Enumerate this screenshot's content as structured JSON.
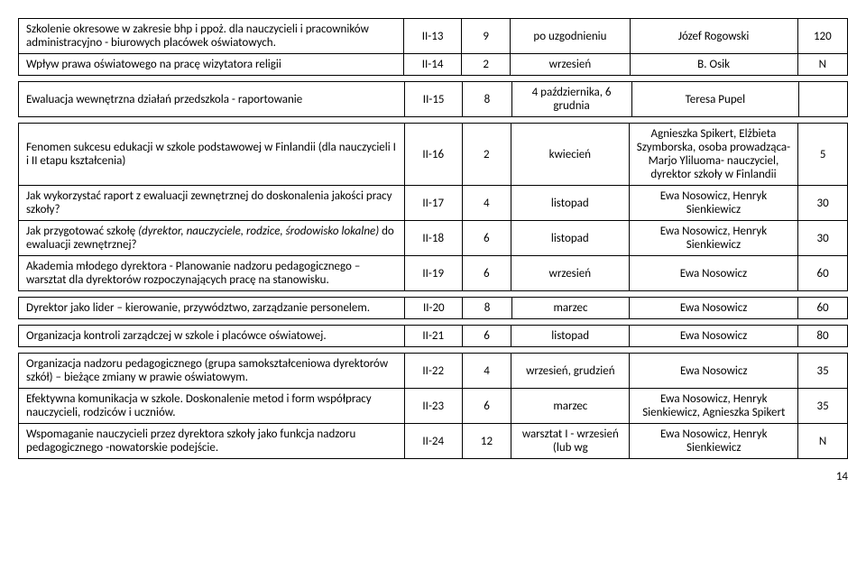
{
  "rows": [
    {
      "desc": "Szkolenie okresowe w zakresie bhp i ppoż. dla nauczycieli i pracowników administracyjno - biurowych placówek oświatowych.",
      "code": "II-13",
      "hrs": "9",
      "month": "po uzgodnieniu",
      "person": "Józef Rogowski",
      "num": "120"
    },
    {
      "desc": "Wpływ prawa oświatowego na pracę wizytatora religii",
      "code": "II-14",
      "hrs": "2",
      "month": "wrzesień",
      "person": "B. Osik",
      "num": "N"
    },
    {
      "desc": "Ewaluacja wewnętrzna działań przedszkola - raportowanie",
      "code": "II-15",
      "hrs": "8",
      "month": "4 października, 6 grudnia",
      "person": "Teresa Pupel",
      "num": ""
    },
    {
      "desc": "Fenomen sukcesu edukacji w szkole podstawowej w Finlandii (dla nauczycieli I i II etapu kształcenia)",
      "code": "II-16",
      "hrs": "2",
      "month": "kwiecień",
      "person": "Agnieszka Spikert, Elżbieta Szymborska, osoba prowadząca- Marjo Yliluoma- nauczyciel, dyrektor szkoły w Finlandii",
      "num": "5"
    },
    {
      "desc": "Jak wykorzystać raport z ewaluacji zewnętrznej do doskonalenia jakości pracy szkoły?",
      "code": "II-17",
      "hrs": "4",
      "month": "listopad",
      "person": "Ewa Nosowicz, Henryk Sienkiewicz",
      "num": "30"
    },
    {
      "desc_html": "Jak przygotować szkołę <span class=\"italic\">(dyrektor, nauczyciele, rodzice, środowisko lokalne)</span> do ewaluacji zewnętrznej?",
      "code": "II-18",
      "hrs": "6",
      "month": "listopad",
      "person": "Ewa Nosowicz, Henryk Sienkiewicz",
      "num": "30"
    },
    {
      "desc": "Akademia młodego dyrektora - Planowanie nadzoru pedagogicznego – warsztat dla dyrektorów rozpoczynających pracę na stanowisku.",
      "code": "II-19",
      "hrs": "6",
      "month": "wrzesień",
      "person": "Ewa Nosowicz",
      "num": "60"
    },
    {
      "desc": "Dyrektor jako lider – kierowanie, przywództwo, zarządzanie personelem.",
      "code": "II-20",
      "hrs": "8",
      "month": "marzec",
      "person": "Ewa Nosowicz",
      "num": "60"
    },
    {
      "desc": "Organizacja kontroli zarządczej w szkole i placówce oświatowej.",
      "code": "II-21",
      "hrs": "6",
      "month": "listopad",
      "person": "Ewa Nosowicz",
      "num": "80"
    },
    {
      "desc": "Organizacja nadzoru pedagogicznego (grupa samokształceniowa dyrektorów szkół) – bieżące zmiany w prawie oświatowym.",
      "code": "II-22",
      "hrs": "4",
      "month": "wrzesień, grudzień",
      "person": "Ewa Nosowicz",
      "num": "35"
    },
    {
      "desc": "Efektywna komunikacja w szkole. Doskonalenie metod i form współpracy nauczycieli, rodziców i uczniów.",
      "code": "II-23",
      "hrs": "6",
      "month": "marzec",
      "person": "Ewa Nosowicz, Henryk Sienkiewicz, Agnieszka Spikert",
      "num": "35"
    },
    {
      "desc": "Wspomaganie nauczycieli przez dyrektora szkoły jako funkcja nadzoru pedagogicznego -nowatorskie podejście.",
      "code": "II-24",
      "hrs": "12",
      "month": "warsztat I - wrzesień (lub wg",
      "person": "Ewa Nosowicz, Henryk Sienkiewicz",
      "num": "N"
    }
  ],
  "groups": [
    [
      0,
      1
    ],
    [
      2
    ],
    [
      3,
      4,
      5,
      6
    ],
    [
      7
    ],
    [
      8
    ],
    [
      9,
      10,
      11
    ]
  ],
  "page_number": "14"
}
